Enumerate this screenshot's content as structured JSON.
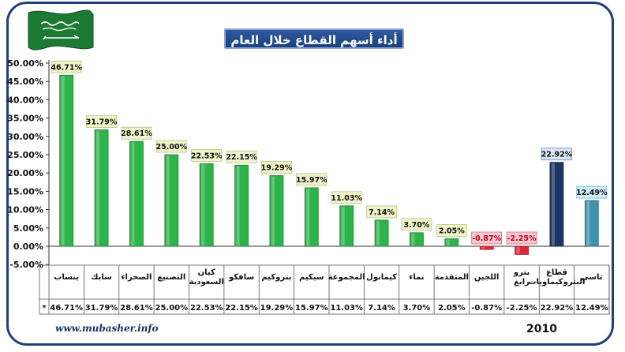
{
  "title": "أداء أسهم القطاع خلال العام 2010",
  "footer": {
    "url": "www.mubasher.info",
    "year": "2010"
  },
  "table_marker": "*",
  "colors": {
    "positive": "#2eb34a",
    "negative": "#e0263a",
    "sector": "#1d3561",
    "index": "#3f93ad"
  },
  "chart_data": {
    "type": "bar",
    "title": "أداء أسهم القطاع خلال العام 2010",
    "categories": [
      "ينساب",
      "سابك",
      "الصحراء",
      "التصنيع",
      "كيان السعودية",
      "سافكو",
      "بتروكيم",
      "سيكيم",
      "المجموعة",
      "كيمانول",
      "نماء",
      "المتقدمة",
      "اللجين",
      "بترو رابغ",
      "قطاع البتروكيماويات",
      "تاسي"
    ],
    "values": [
      46.71,
      31.79,
      28.61,
      25.0,
      22.53,
      22.15,
      19.29,
      15.97,
      11.03,
      7.14,
      3.7,
      2.05,
      -0.87,
      -2.25,
      22.92,
      12.49
    ],
    "labels": [
      "46.71%",
      "31.79%",
      "28.61%",
      "25.00%",
      "22.53%",
      "22.15%",
      "19.29%",
      "15.97%",
      "11.03%",
      "7.14%",
      "3.70%",
      "2.05%",
      "-0.87%",
      "-2.25%",
      "22.92%",
      "12.49%"
    ],
    "bar_kinds": [
      "positive",
      "positive",
      "positive",
      "positive",
      "positive",
      "positive",
      "positive",
      "positive",
      "positive",
      "positive",
      "positive",
      "positive",
      "negative",
      "negative",
      "sector",
      "index"
    ],
    "yticks": [
      -5,
      0,
      5,
      10,
      15,
      20,
      25,
      30,
      35,
      40,
      45,
      50
    ],
    "ytick_labels": [
      "-5.00%",
      "0.00%",
      "5.00%",
      "10.00%",
      "15.00%",
      "20.00%",
      "25.00%",
      "30.00%",
      "35.00%",
      "40.00%",
      "45.00%",
      "50.00%"
    ],
    "ylim": [
      -5,
      50
    ],
    "grid": false,
    "legend": "none"
  }
}
